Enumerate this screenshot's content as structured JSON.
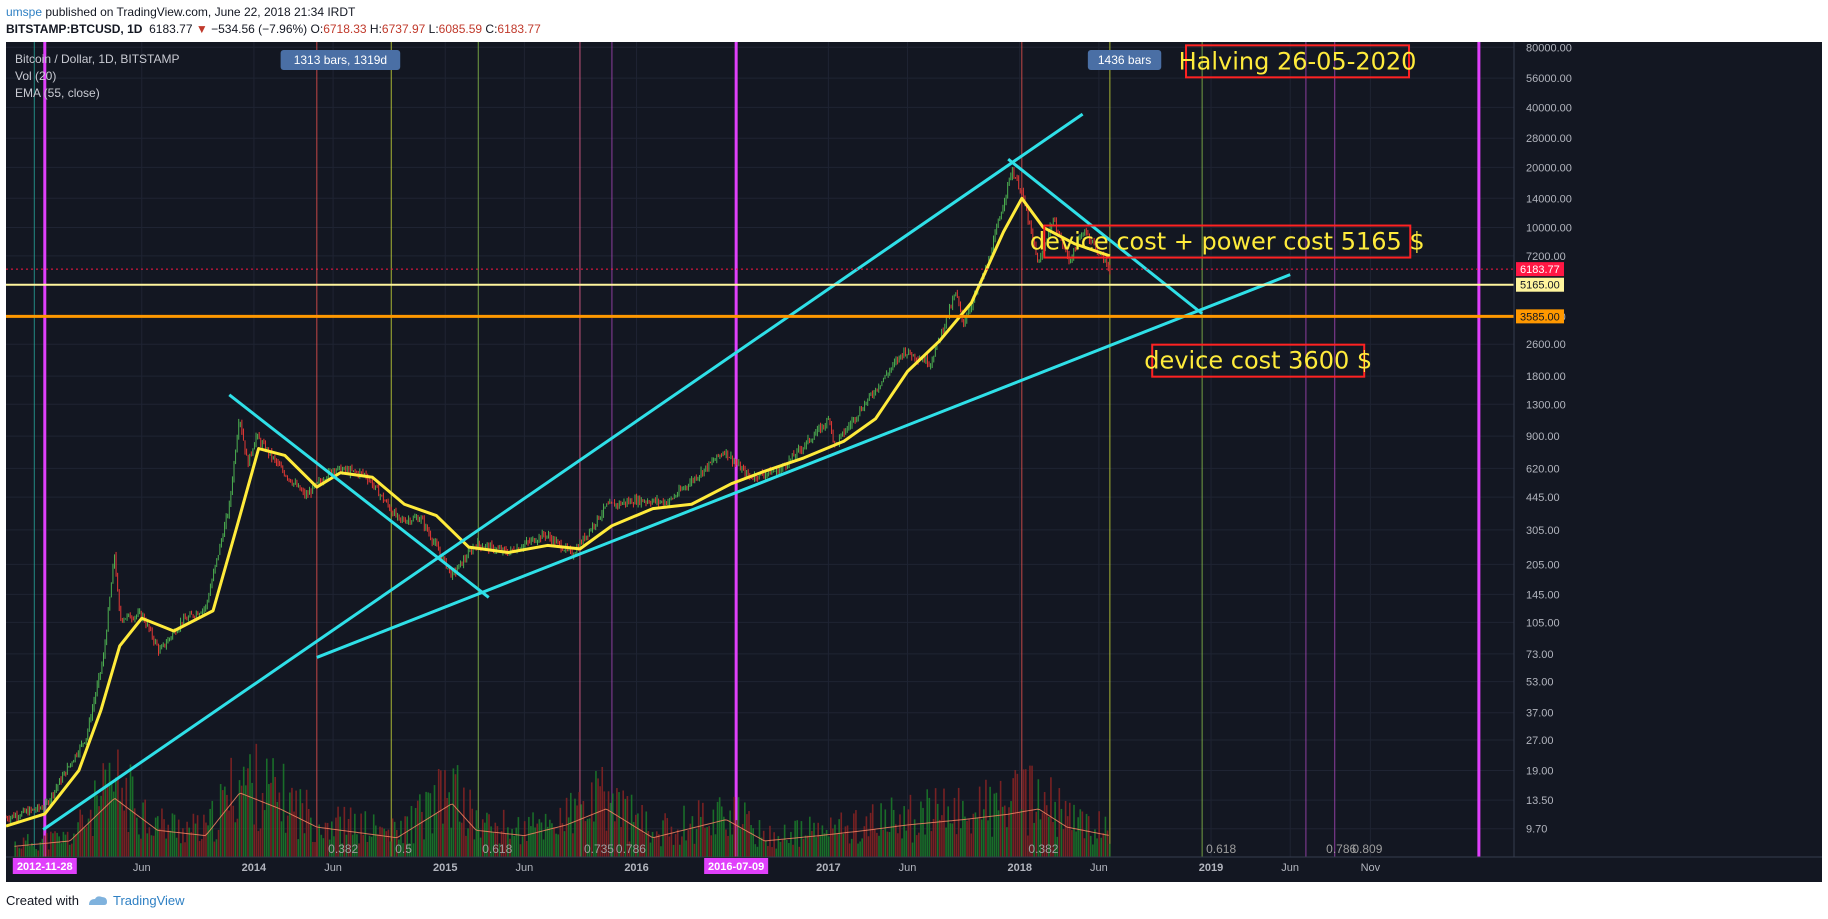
{
  "header": {
    "user": "umspe",
    "published": " published on TradingView.com, June 22, 2018 21:34 IRDT",
    "symbol": "BITSTAMP:BTCUSD, 1D",
    "last": "6183.77",
    "change": "−534.56 (−7.96%)",
    "o_label": "O:",
    "o_value": "6718.33",
    "h_label": "H:",
    "h_value": "6737.97",
    "l_label": "L:",
    "l_value": "6085.59",
    "c_label": "C:",
    "c_value": "6183.77"
  },
  "legend": {
    "title": "Bitcoin / Dollar, 1D, BITSTAMP",
    "volume": "Vol (20)",
    "ema": "EMA (55, close)"
  },
  "footer": {
    "created": "Created with",
    "brand": "TradingView"
  },
  "colors": {
    "background": "#131722",
    "ema": "#ffeb3b",
    "trendline": "#2fe0e8",
    "magenta": "#e040fb",
    "support_yellow": "#fff59d",
    "support_orange": "#ff9800",
    "annotation_border": "#ff2222",
    "annotation_text": "#ffeb3b",
    "price_badge": "#ff1744"
  },
  "chart_data": {
    "type": "line",
    "title": "Bitcoin / Dollar, 1D, BITSTAMP",
    "y_scale": "log",
    "ylim": [
      7.0,
      85000
    ],
    "xlim": [
      "2012-09-15",
      "2020-08-01"
    ],
    "y_ticks": [
      "80000.00",
      "56000.00",
      "40000.00",
      "28000.00",
      "20000.00",
      "14000.00",
      "10000.00",
      "7200.00",
      "3585.00",
      "2600.00",
      "1800.00",
      "1300.00",
      "900.00",
      "620.00",
      "445.00",
      "305.00",
      "205.00",
      "145.00",
      "105.00",
      "73.00",
      "53.00",
      "37.00",
      "27.00",
      "19.00",
      "13.50",
      "9.70"
    ],
    "x_ticks": [
      {
        "date": "2013-06-01",
        "label": "Jun"
      },
      {
        "date": "2014-01-01",
        "label": "2014"
      },
      {
        "date": "2014-06-01",
        "label": "Jun"
      },
      {
        "date": "2015-01-01",
        "label": "2015"
      },
      {
        "date": "2015-06-01",
        "label": "Jun"
      },
      {
        "date": "2016-01-01",
        "label": "2016"
      },
      {
        "date": "2017-01-01",
        "label": "2017"
      },
      {
        "date": "2017-06-01",
        "label": "Jun"
      },
      {
        "date": "2018-01-01",
        "label": "2018"
      },
      {
        "date": "2018-06-01",
        "label": "Jun"
      },
      {
        "date": "2019-01-01",
        "label": "2019"
      },
      {
        "date": "2019-06-01",
        "label": "Jun"
      },
      {
        "date": "2019-11-01",
        "label": "Nov"
      }
    ],
    "x_highlights": [
      {
        "date": "2012-11-28",
        "label": "2012-11-28"
      },
      {
        "date": "2016-07-09",
        "label": "2016-07-09"
      }
    ],
    "price": {
      "dates": [
        "2012-09-15",
        "2012-11-28",
        "2013-02-15",
        "2013-03-20",
        "2013-04-10",
        "2013-04-20",
        "2013-06-01",
        "2013-07-05",
        "2013-08-15",
        "2013-10-01",
        "2013-11-15",
        "2013-12-04",
        "2013-12-20",
        "2014-01-05",
        "2014-02-25",
        "2014-04-10",
        "2014-06-01",
        "2014-08-01",
        "2014-10-05",
        "2014-11-15",
        "2015-01-14",
        "2015-03-01",
        "2015-05-01",
        "2015-07-10",
        "2015-09-01",
        "2015-11-04",
        "2016-01-01",
        "2016-03-01",
        "2016-06-17",
        "2016-08-02",
        "2016-10-01",
        "2017-01-04",
        "2017-01-12",
        "2017-03-01",
        "2017-05-25",
        "2017-07-15",
        "2017-09-01",
        "2017-09-15",
        "2017-11-01",
        "2017-12-17",
        "2018-01-05",
        "2018-02-06",
        "2018-03-05",
        "2018-04-06",
        "2018-05-05",
        "2018-06-01",
        "2018-06-22"
      ],
      "values": [
        11,
        12.5,
        28,
        70,
        230,
        110,
        115,
        75,
        105,
        125,
        400,
        1150,
        650,
        900,
        600,
        450,
        620,
        580,
        340,
        350,
        180,
        260,
        235,
        290,
        230,
        400,
        430,
        420,
        760,
        560,
        610,
        1100,
        800,
        1200,
        2400,
        2100,
        4700,
        3300,
        6500,
        19500,
        15000,
        6500,
        11000,
        6800,
        9800,
        7500,
        6183.77
      ]
    },
    "ema": {
      "dates": [
        "2012-09-15",
        "2012-11-28",
        "2013-02-01",
        "2013-03-15",
        "2013-04-20",
        "2013-06-01",
        "2013-08-01",
        "2013-10-15",
        "2013-11-30",
        "2014-01-10",
        "2014-03-01",
        "2014-05-01",
        "2014-06-15",
        "2014-08-15",
        "2014-10-15",
        "2014-12-15",
        "2015-02-15",
        "2015-05-01",
        "2015-07-15",
        "2015-09-15",
        "2015-11-15",
        "2016-02-01",
        "2016-04-15",
        "2016-06-30",
        "2016-09-01",
        "2016-11-15",
        "2017-01-31",
        "2017-04-01",
        "2017-06-01",
        "2017-08-01",
        "2017-10-01",
        "2017-12-01",
        "2018-01-05",
        "2018-02-15",
        "2018-04-15",
        "2018-06-22"
      ],
      "values": [
        10,
        11.5,
        19,
        38,
        80,
        110,
        95,
        120,
        320,
        780,
        720,
        500,
        590,
        560,
        410,
        360,
        250,
        235,
        255,
        245,
        320,
        390,
        410,
        520,
        600,
        700,
        850,
        1100,
        1900,
        2700,
        4200,
        9500,
        14000,
        10000,
        8300,
        7200
      ]
    },
    "volume": {
      "dates": [
        "2012-10-01",
        "2013-01-15",
        "2013-04-10",
        "2013-07-01",
        "2013-10-01",
        "2013-12-05",
        "2014-02-20",
        "2014-05-01",
        "2014-08-01",
        "2014-10-01",
        "2015-01-14",
        "2015-03-01",
        "2015-06-01",
        "2015-08-20",
        "2015-11-04",
        "2016-02-01",
        "2016-06-20",
        "2016-09-01",
        "2016-12-15",
        "2017-03-15",
        "2017-06-01",
        "2017-09-15",
        "2017-12-10",
        "2018-02-06",
        "2018-04-01",
        "2018-06-22"
      ],
      "values": [
        10,
        15,
        55,
        25,
        20,
        60,
        45,
        28,
        22,
        18,
        50,
        25,
        20,
        30,
        45,
        18,
        35,
        15,
        20,
        25,
        30,
        35,
        40,
        45,
        28,
        20
      ]
    },
    "trendlines": [
      {
        "name": "long-term rising",
        "from": {
          "date": "2012-11-25",
          "value": 9.6
        },
        "to": {
          "date": "2018-05-01",
          "value": 37000
        }
      },
      {
        "name": "long-term support",
        "from": {
          "date": "2014-05-01",
          "value": 70
        },
        "to": {
          "date": "2019-06-01",
          "value": 5800
        }
      },
      {
        "name": "2014 decline",
        "from": {
          "date": "2013-11-15",
          "value": 1450
        },
        "to": {
          "date": "2015-03-25",
          "value": 140
        }
      },
      {
        "name": "2018 decline",
        "from": {
          "date": "2017-12-10",
          "value": 22000
        },
        "to": {
          "date": "2018-12-15",
          "value": 3700
        }
      }
    ],
    "horizontal_levels": [
      {
        "value": 5165.0,
        "label": "5165.00"
      },
      {
        "value": 3585.0,
        "label": "3585.00"
      }
    ],
    "last_price": {
      "value": 6183.77,
      "label": "6183.77"
    },
    "measures": [
      {
        "label": "1313 bars, 1319d",
        "date": "2014-06-15"
      },
      {
        "label": "1436 bars",
        "date": "2018-07-20"
      }
    ],
    "annotations": [
      {
        "text": "Halving  26-05-2020",
        "date": "2019-06-15",
        "value": 68000
      },
      {
        "text": "device cost + power cost  5165 $",
        "date": "2019-02-01",
        "value": 8500
      },
      {
        "text": "device cost 3600 $",
        "date": "2019-04-01",
        "value": 2150
      }
    ],
    "fib_labels": [
      {
        "text": "0.382",
        "date": "2014-05-15"
      },
      {
        "text": "0.5",
        "date": "2014-09-20"
      },
      {
        "text": "0.618",
        "date": "2015-03-05"
      },
      {
        "text": "0.735",
        "date": "2015-09-15"
      },
      {
        "text": "0.786",
        "date": "2015-11-15"
      },
      {
        "text": "0.382",
        "date": "2018-01-10"
      },
      {
        "text": "0.618",
        "date": "2018-12-15"
      },
      {
        "text": "0.786",
        "date": "2019-08-01"
      },
      {
        "text": "0.809",
        "date": "2019-09-20"
      }
    ],
    "vertical_lines": [
      {
        "date": "2012-11-08",
        "color": "#26a69a"
      },
      {
        "date": "2012-11-28",
        "color": "#e040fb",
        "bold": true
      },
      {
        "date": "2014-05-01",
        "color": "#ef5350"
      },
      {
        "date": "2014-09-20",
        "color": "#cddc39"
      },
      {
        "date": "2015-03-05",
        "color": "#8bc34a"
      },
      {
        "date": "2015-09-15",
        "color": "#f06292"
      },
      {
        "date": "2015-11-15",
        "color": "#ab47bc"
      },
      {
        "date": "2016-07-09",
        "color": "#e040fb",
        "bold": true
      },
      {
        "date": "2018-01-05",
        "color": "#ef5350"
      },
      {
        "date": "2018-06-22",
        "color": "#cddc39"
      },
      {
        "date": "2018-12-15",
        "color": "#8bc34a"
      },
      {
        "date": "2019-07-01",
        "color": "#ab47bc"
      },
      {
        "date": "2019-08-25",
        "color": "#ab47bc"
      },
      {
        "date": "2020-05-26",
        "color": "#e040fb",
        "bold": true
      }
    ]
  }
}
